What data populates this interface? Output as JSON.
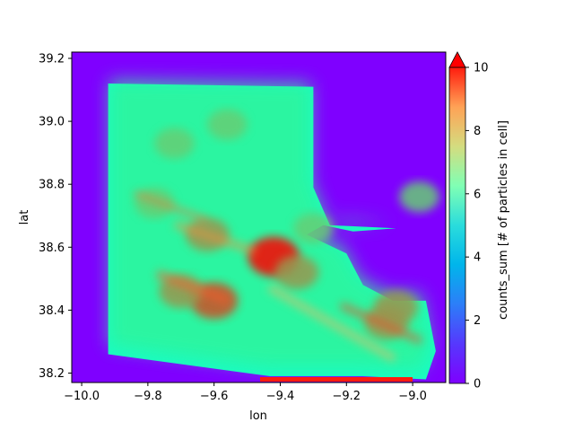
{
  "chart_data": {
    "type": "heatmap",
    "title": "",
    "xlabel": "lon",
    "ylabel": "lat",
    "xlim": [
      -10.03,
      -8.9
    ],
    "ylim": [
      38.17,
      39.22
    ],
    "xticks": [
      -10.0,
      -9.8,
      -9.6,
      -9.4,
      -9.2,
      -9.0
    ],
    "xtick_labels": [
      "−10.0",
      "−9.8",
      "−9.6",
      "−9.4",
      "−9.2",
      "−9.0"
    ],
    "yticks": [
      38.2,
      38.4,
      38.6,
      38.8,
      39.0,
      39.2
    ],
    "ytick_labels": [
      "38.2",
      "38.4",
      "38.6",
      "38.8",
      "39.0",
      "39.2"
    ],
    "colorbar": {
      "label": "counts_sum [# of particles in cell]",
      "vmin": 0,
      "vmax": 10,
      "ticks": [
        0,
        2,
        4,
        6,
        8,
        10
      ],
      "tick_labels": [
        "0",
        "2",
        "4",
        "6",
        "8",
        "10"
      ],
      "extend": "max",
      "colormap": "rainbow",
      "under_color": "#7f00ff",
      "over_color": "#ff0000"
    },
    "background_value": 0,
    "ocean_region": [
      [
        -9.92,
        39.12
      ],
      [
        -9.3,
        39.11
      ],
      [
        -9.3,
        38.96
      ],
      [
        -9.3,
        38.79
      ],
      [
        -9.25,
        38.67
      ],
      [
        -9.05,
        38.66
      ],
      [
        -8.97,
        38.78
      ],
      [
        -9.05,
        38.66
      ],
      [
        -9.18,
        38.65
      ],
      [
        -9.27,
        38.67
      ],
      [
        -9.32,
        38.64
      ],
      [
        -9.2,
        38.58
      ],
      [
        -9.15,
        38.48
      ],
      [
        -9.06,
        38.43
      ],
      [
        -8.96,
        38.43
      ],
      [
        -8.93,
        38.27
      ],
      [
        -8.96,
        38.18
      ],
      [
        -9.15,
        38.19
      ],
      [
        -9.43,
        38.19
      ],
      [
        -9.92,
        38.26
      ]
    ],
    "hotspots": [
      {
        "lon": -9.42,
        "lat": 38.57,
        "value": 10
      },
      {
        "lon": -9.6,
        "lat": 38.43,
        "value": 9
      },
      {
        "lon": -9.7,
        "lat": 38.46,
        "value": 8
      },
      {
        "lon": -9.62,
        "lat": 38.64,
        "value": 8
      },
      {
        "lon": -9.72,
        "lat": 38.93,
        "value": 7
      },
      {
        "lon": -9.56,
        "lat": 38.99,
        "value": 7
      },
      {
        "lon": -9.78,
        "lat": 38.74,
        "value": 7
      },
      {
        "lon": -9.35,
        "lat": 38.52,
        "value": 8
      },
      {
        "lon": -9.08,
        "lat": 38.36,
        "value": 8
      },
      {
        "lon": -9.05,
        "lat": 38.41,
        "value": 8
      },
      {
        "lon": -8.98,
        "lat": 38.76,
        "value": 7
      },
      {
        "lon": -9.3,
        "lat": 38.66,
        "value": 7
      }
    ]
  }
}
